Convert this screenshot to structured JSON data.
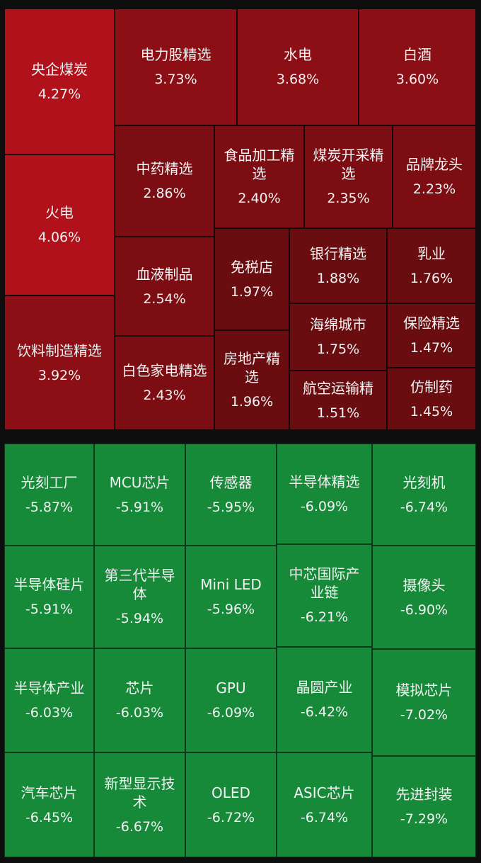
{
  "sections": [
    {
      "tiles": [
        {
          "name": "央企煤炭",
          "change": "4.27%"
        },
        {
          "name": "火电",
          "change": "4.06%"
        },
        {
          "name": "饮料制造精选",
          "change": "3.92%"
        },
        {
          "name": "电力股精选",
          "change": "3.73%"
        },
        {
          "name": "水电",
          "change": "3.68%"
        },
        {
          "name": "白酒",
          "change": "3.60%"
        },
        {
          "name": "中药精选",
          "change": "2.86%"
        },
        {
          "name": "食品加工精选",
          "change": "2.40%"
        },
        {
          "name": "煤炭开采精选",
          "change": "2.35%"
        },
        {
          "name": "品牌龙头",
          "change": "2.23%"
        },
        {
          "name": "血液制品",
          "change": "2.54%"
        },
        {
          "name": "白色家电精选",
          "change": "2.43%"
        },
        {
          "name": "免税店",
          "change": "1.97%"
        },
        {
          "name": "房地产精选",
          "change": "1.96%"
        },
        {
          "name": "银行精选",
          "change": "1.88%"
        },
        {
          "name": "海绵城市",
          "change": "1.75%"
        },
        {
          "name": "航空运输精",
          "change": "1.51%"
        },
        {
          "name": "乳业",
          "change": "1.76%"
        },
        {
          "name": "保险精选",
          "change": "1.47%"
        },
        {
          "name": "仿制药",
          "change": "1.45%"
        }
      ]
    },
    {
      "tiles": [
        {
          "name": "光刻工厂",
          "change": "-5.87%"
        },
        {
          "name": "半导体硅片",
          "change": "-5.91%"
        },
        {
          "name": "半导体产业",
          "change": "-6.03%"
        },
        {
          "name": "汽车芯片",
          "change": "-6.45%"
        },
        {
          "name": "MCU芯片",
          "change": "-5.91%"
        },
        {
          "name": "第三代半导体",
          "change": "-5.94%"
        },
        {
          "name": "芯片",
          "change": "-6.03%"
        },
        {
          "name": "新型显示技术",
          "change": "-6.67%"
        },
        {
          "name": "传感器",
          "change": "-5.95%"
        },
        {
          "name": "Mini LED",
          "change": "-5.96%"
        },
        {
          "name": "GPU",
          "change": "-6.09%"
        },
        {
          "name": "OLED",
          "change": "-6.72%"
        },
        {
          "name": "半导体精选",
          "change": "-6.09%"
        },
        {
          "name": "中芯国际产业链",
          "change": "-6.21%"
        },
        {
          "name": "晶圆产业",
          "change": "-6.42%"
        },
        {
          "name": "ASIC芯片",
          "change": "-6.74%"
        },
        {
          "name": "光刻机",
          "change": "-6.74%"
        },
        {
          "name": "摄像头",
          "change": "-6.90%"
        },
        {
          "name": "模拟芯片",
          "change": "-7.02%"
        },
        {
          "name": "先进封装",
          "change": "-7.29%"
        }
      ]
    }
  ]
}
